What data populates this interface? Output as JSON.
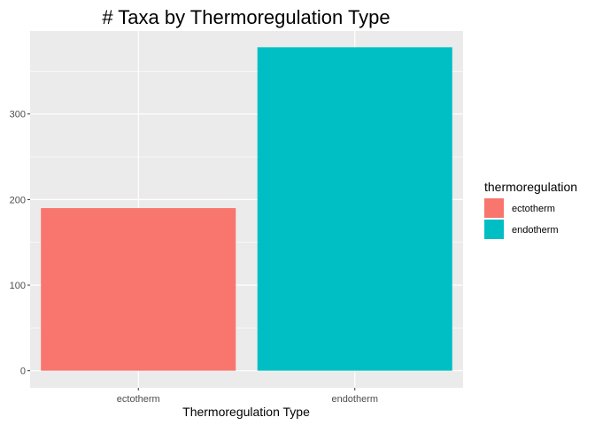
{
  "chart_data": {
    "type": "bar",
    "title": "# Taxa by Thermoregulation Type",
    "xlabel": "Thermoregulation Type",
    "ylabel": "",
    "categories": [
      "ectotherm",
      "endotherm"
    ],
    "values": [
      190,
      378
    ],
    "colors": [
      "#F8766D",
      "#00BFC4"
    ],
    "ylim": [
      -20,
      397
    ],
    "yticks": [
      0,
      100,
      200,
      300
    ],
    "grid": true,
    "panel_background": "#EBEBEB",
    "grid_color": "#FFFFFF",
    "legend": {
      "title": "thermoregulation",
      "position": "right",
      "items": [
        {
          "label": "ectotherm",
          "color": "#F8766D"
        },
        {
          "label": "endotherm",
          "color": "#00BFC4"
        }
      ]
    }
  }
}
